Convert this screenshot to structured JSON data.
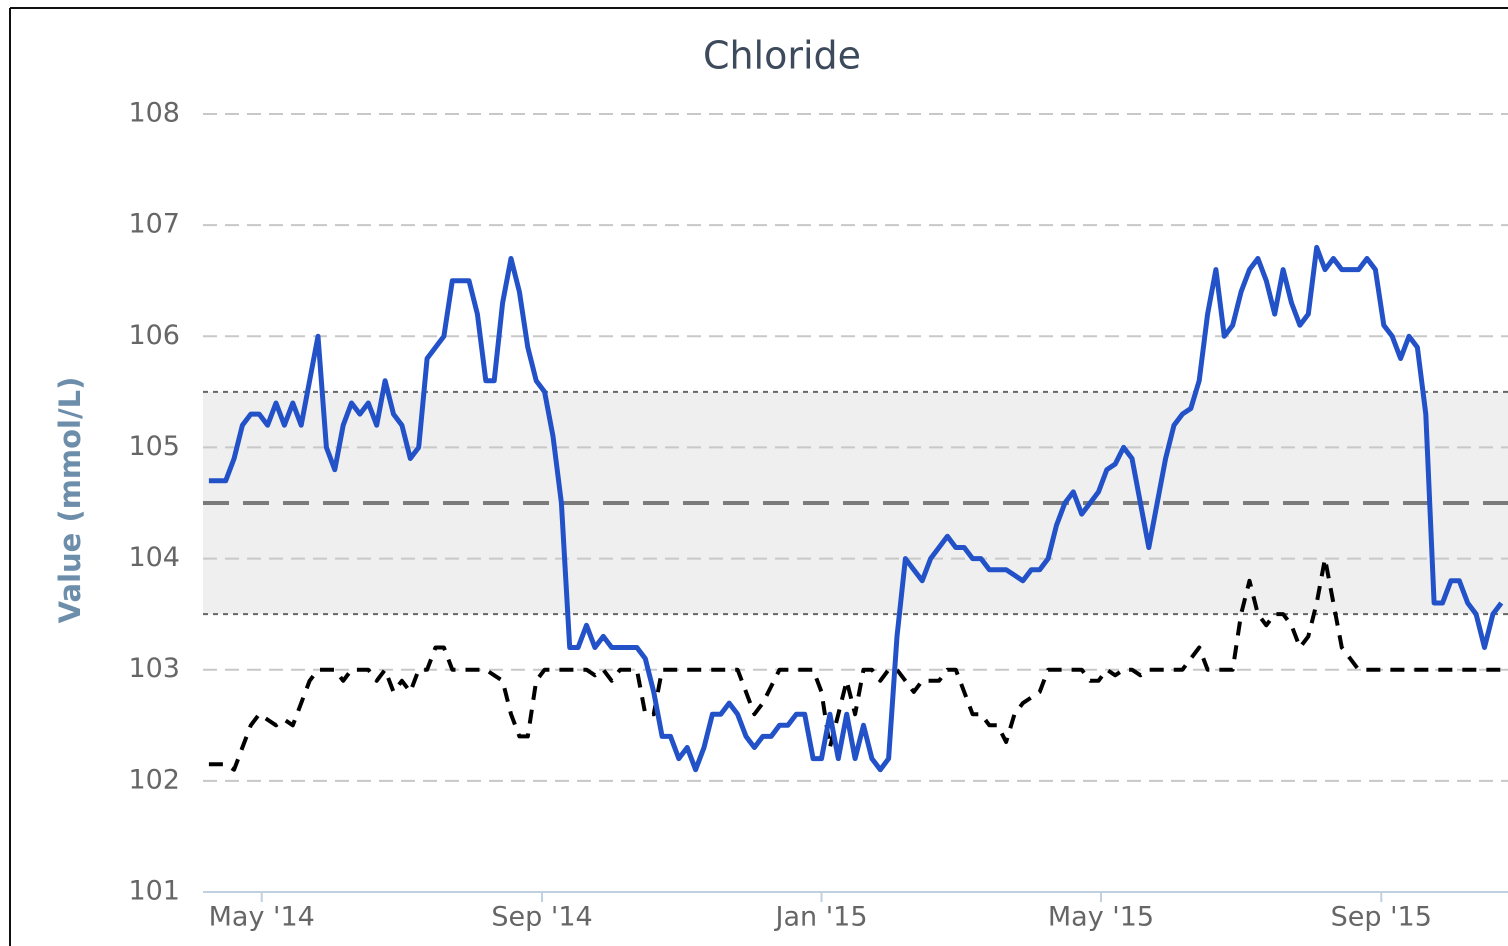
{
  "chart_data": {
    "type": "line",
    "title": "Chloride",
    "y_label": "Value (mmol/L)",
    "ylim": [
      101,
      108
    ],
    "yticks": [
      101,
      102,
      103,
      104,
      105,
      106,
      107,
      108
    ],
    "xlim": [
      2014.263,
      2015.818
    ],
    "xticks": [
      {
        "value": 2014.333,
        "label": "May '14"
      },
      {
        "value": 2014.667,
        "label": "Sep '14"
      },
      {
        "value": 2015,
        "label": "Jan '15"
      },
      {
        "value": 2015.333,
        "label": "May '15"
      },
      {
        "value": 2015.667,
        "label": "Sep '15"
      }
    ],
    "grid": true,
    "plot_bands": [
      {
        "from": 103.5,
        "to": 105.5,
        "color": "#efefef"
      }
    ],
    "plot_lines": [
      {
        "value": 104.5,
        "color": "#7a7a7a"
      }
    ],
    "x": [
      2014.27,
      2014.28,
      2014.29,
      2014.3,
      2014.31,
      2014.32,
      2014.33,
      2014.34,
      2014.35,
      2014.36,
      2014.37,
      2014.38,
      2014.39,
      2014.4,
      2014.41,
      2014.42,
      2014.43,
      2014.44,
      2014.45,
      2014.46,
      2014.47,
      2014.48,
      2014.49,
      2014.5,
      2014.51,
      2014.52,
      2014.53,
      2014.54,
      2014.55,
      2014.56,
      2014.57,
      2014.58,
      2014.59,
      2014.6,
      2014.61,
      2014.62,
      2014.63,
      2014.64,
      2014.65,
      2014.66,
      2014.67,
      2014.68,
      2014.69,
      2014.7,
      2014.71,
      2014.72,
      2014.73,
      2014.74,
      2014.75,
      2014.76,
      2014.77,
      2014.78,
      2014.79,
      2014.8,
      2014.81,
      2014.82,
      2014.83,
      2014.84,
      2014.85,
      2014.86,
      2014.87,
      2014.88,
      2014.89,
      2014.9,
      2014.91,
      2014.92,
      2014.93,
      2014.94,
      2014.95,
      2014.96,
      2014.97,
      2014.98,
      2014.99,
      2015.0,
      2015.01,
      2015.02,
      2015.03,
      2015.04,
      2015.05,
      2015.06,
      2015.07,
      2015.08,
      2015.09,
      2015.1,
      2015.11,
      2015.12,
      2015.13,
      2015.14,
      2015.15,
      2015.16,
      2015.17,
      2015.18,
      2015.19,
      2015.2,
      2015.21,
      2015.22,
      2015.23,
      2015.24,
      2015.25,
      2015.26,
      2015.27,
      2015.28,
      2015.29,
      2015.3,
      2015.31,
      2015.32,
      2015.33,
      2015.34,
      2015.35,
      2015.36,
      2015.37,
      2015.38,
      2015.39,
      2015.4,
      2015.41,
      2015.42,
      2015.43,
      2015.44,
      2015.45,
      2015.46,
      2015.47,
      2015.48,
      2015.49,
      2015.5,
      2015.51,
      2015.52,
      2015.53,
      2015.54,
      2015.55,
      2015.56,
      2015.57,
      2015.58,
      2015.59,
      2015.6,
      2015.61,
      2015.62,
      2015.63,
      2015.64,
      2015.65,
      2015.66,
      2015.67,
      2015.68,
      2015.69,
      2015.7,
      2015.71,
      2015.72,
      2015.73,
      2015.74,
      2015.75,
      2015.76,
      2015.77,
      2015.78,
      2015.79,
      2015.8,
      2015.81
    ],
    "series": [
      {
        "color": "#2352c8",
        "dashed": false,
        "values": [
          104.7,
          104.7,
          104.7,
          104.9,
          105.2,
          105.3,
          105.3,
          105.2,
          105.4,
          105.2,
          105.4,
          105.2,
          105.6,
          106.0,
          105.0,
          104.8,
          105.2,
          105.4,
          105.3,
          105.4,
          105.2,
          105.6,
          105.3,
          105.2,
          104.9,
          105.0,
          105.8,
          105.9,
          106.0,
          106.5,
          106.5,
          106.5,
          106.2,
          105.6,
          105.6,
          106.3,
          106.7,
          106.4,
          105.9,
          105.6,
          105.5,
          105.1,
          104.5,
          103.2,
          103.2,
          103.4,
          103.2,
          103.3,
          103.2,
          103.2,
          103.2,
          103.2,
          103.1,
          102.8,
          102.4,
          102.4,
          102.2,
          102.3,
          102.1,
          102.3,
          102.6,
          102.6,
          102.7,
          102.6,
          102.4,
          102.3,
          102.4,
          102.4,
          102.5,
          102.5,
          102.6,
          102.6,
          102.2,
          102.2,
          102.6,
          102.2,
          102.6,
          102.2,
          102.5,
          102.2,
          102.1,
          102.2,
          103.3,
          104.0,
          103.9,
          103.8,
          104.0,
          104.1,
          104.2,
          104.1,
          104.1,
          104.0,
          104.0,
          103.9,
          103.9,
          103.9,
          103.85,
          103.8,
          103.9,
          103.9,
          104.0,
          104.3,
          104.5,
          104.6,
          104.4,
          104.5,
          104.6,
          104.8,
          104.85,
          105.0,
          104.9,
          104.5,
          104.1,
          104.5,
          104.9,
          105.2,
          105.3,
          105.35,
          105.6,
          106.2,
          106.6,
          106.0,
          106.1,
          106.4,
          106.6,
          106.7,
          106.5,
          106.2,
          106.6,
          106.3,
          106.1,
          106.2,
          106.8,
          106.6,
          106.7,
          106.6,
          106.6,
          106.6,
          106.7,
          106.6,
          106.1,
          106.0,
          105.8,
          106.0,
          105.9,
          105.3,
          103.6,
          103.6,
          103.8,
          103.8,
          103.6,
          103.5,
          103.2,
          103.5,
          103.6
        ]
      },
      {
        "color": "#000000",
        "dashed": true,
        "values": [
          102.15,
          102.15,
          102.15,
          102.1,
          102.3,
          102.5,
          102.6,
          102.55,
          102.5,
          102.55,
          102.5,
          102.7,
          102.9,
          103.0,
          103.0,
          103.0,
          102.9,
          103.0,
          103.0,
          103.0,
          102.9,
          103.0,
          102.8,
          102.9,
          102.8,
          103.0,
          103.0,
          103.2,
          103.2,
          103.0,
          103.0,
          103.0,
          103.0,
          103.0,
          102.95,
          102.9,
          102.6,
          102.4,
          102.4,
          102.9,
          103.0,
          103.0,
          103.0,
          103.0,
          103.0,
          103.0,
          102.95,
          103.0,
          102.9,
          103.0,
          103.0,
          103.0,
          102.6,
          102.6,
          103.0,
          103.0,
          103.0,
          103.0,
          103.0,
          103.0,
          103.0,
          103.0,
          103.0,
          103.0,
          102.8,
          102.6,
          102.7,
          102.85,
          103.0,
          103.0,
          103.0,
          103.0,
          103.0,
          102.8,
          102.3,
          102.6,
          102.9,
          102.6,
          103.0,
          103.0,
          102.9,
          103.0,
          103.0,
          102.9,
          102.8,
          102.9,
          102.9,
          102.9,
          103.0,
          103.0,
          102.8,
          102.6,
          102.6,
          102.5,
          102.5,
          102.35,
          102.6,
          102.7,
          102.75,
          102.8,
          103.0,
          103.0,
          103.0,
          103.0,
          103.0,
          102.9,
          102.9,
          103.0,
          102.95,
          103.0,
          103.0,
          102.95,
          103.0,
          103.0,
          103.0,
          103.0,
          103.0,
          103.1,
          103.2,
          103.0,
          103.0,
          103.0,
          103.0,
          103.5,
          103.8,
          103.5,
          103.4,
          103.5,
          103.5,
          103.4,
          103.2,
          103.3,
          103.6,
          104.0,
          103.6,
          103.2,
          103.1,
          103.0,
          103.0,
          103.0,
          103.0,
          103.0,
          103.0,
          103.0,
          103.0,
          103.0,
          103.0,
          103.0,
          103.0,
          103.0,
          103.0,
          103.0,
          103.0,
          103.0,
          103.0
        ]
      }
    ]
  }
}
